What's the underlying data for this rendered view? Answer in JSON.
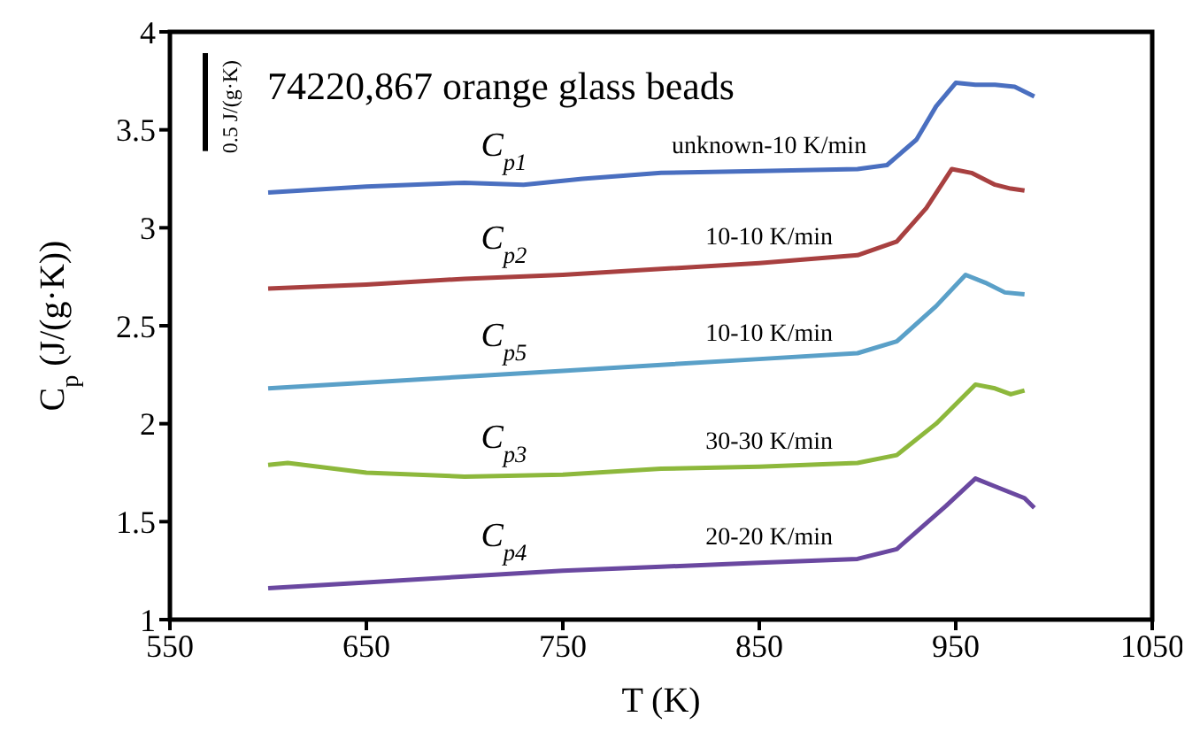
{
  "chart_data": {
    "type": "line",
    "title": "74220,867 orange glass beads",
    "xlabel": "T  (K)",
    "ylabel": "C$_{p}$  (J/(g·K))",
    "xlim": [
      550,
      1050
    ],
    "xticks": [
      550,
      650,
      750,
      850,
      950,
      1050
    ],
    "ylim": [
      1,
      4
    ],
    "yticks": [
      1,
      1.5,
      2,
      2.5,
      3,
      3.5,
      4
    ],
    "marker": "none",
    "line_style": "solid",
    "series": [
      {
        "color": "#4a6fc0",
        "x": [
          600,
          650,
          700,
          730,
          760,
          800,
          850,
          900,
          915,
          930,
          940,
          950,
          960,
          970,
          980,
          990
        ],
        "values": [
          3.18,
          3.21,
          3.23,
          3.22,
          3.25,
          3.28,
          3.29,
          3.3,
          3.32,
          3.45,
          3.62,
          3.74,
          3.73,
          3.73,
          3.72,
          3.67
        ]
      },
      {
        "color": "#a84040",
        "x": [
          600,
          650,
          700,
          750,
          800,
          850,
          900,
          920,
          935,
          948,
          958,
          970,
          978,
          985
        ],
        "values": [
          2.69,
          2.71,
          2.74,
          2.76,
          2.79,
          2.82,
          2.86,
          2.93,
          3.1,
          3.3,
          3.28,
          3.22,
          3.2,
          3.19
        ]
      },
      {
        "color": "#5aa0c8",
        "x": [
          600,
          650,
          700,
          750,
          800,
          850,
          900,
          920,
          940,
          955,
          965,
          975,
          985
        ],
        "values": [
          2.18,
          2.21,
          2.24,
          2.27,
          2.3,
          2.33,
          2.36,
          2.42,
          2.6,
          2.76,
          2.72,
          2.67,
          2.66
        ]
      },
      {
        "color": "#8db83c",
        "x": [
          600,
          610,
          650,
          700,
          750,
          800,
          850,
          900,
          920,
          940,
          960,
          970,
          978,
          985
        ],
        "values": [
          1.79,
          1.8,
          1.75,
          1.73,
          1.74,
          1.77,
          1.78,
          1.8,
          1.84,
          2.0,
          2.2,
          2.18,
          2.15,
          2.17
        ]
      },
      {
        "color": "#6a48a0",
        "x": [
          600,
          650,
          700,
          750,
          800,
          850,
          900,
          920,
          945,
          960,
          970,
          985,
          990
        ],
        "values": [
          1.16,
          1.19,
          1.22,
          1.25,
          1.27,
          1.29,
          1.31,
          1.36,
          1.58,
          1.72,
          1.68,
          1.62,
          1.57
        ]
      }
    ],
    "annotations": [
      "C$_{p1}$",
      "unknown-10 K/min",
      "C$_{p2}$",
      "10-10 K/min",
      "C$_{p5}$",
      "10-10 K/min",
      "C$_{p3}$",
      "30-30 K/min",
      "C$_{p4}$",
      "20-20 K/min",
      "0.5 J/(g·K)"
    ]
  }
}
